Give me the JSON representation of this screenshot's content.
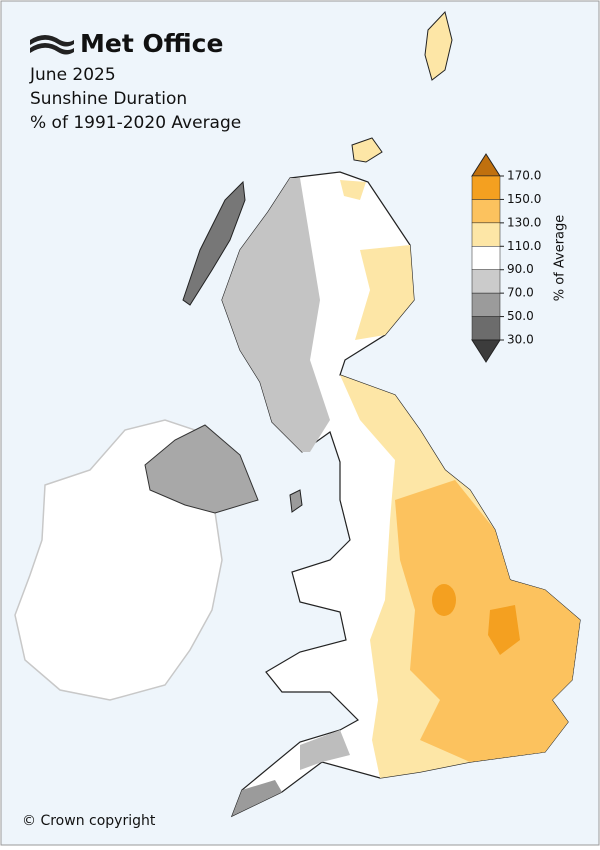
{
  "header": {
    "logo": "Met Office",
    "lines": [
      "June 2025",
      "Sunshine Duration",
      "% of 1991-2020 Average"
    ]
  },
  "colorbar": {
    "label": "% of Average",
    "ticks": [
      {
        "value": 170,
        "label": "170.0"
      },
      {
        "value": 150,
        "label": "150.0"
      },
      {
        "value": 130,
        "label": "130.0"
      },
      {
        "value": 110,
        "label": "110.0"
      },
      {
        "value": 90,
        "label": "90.0"
      },
      {
        "value": 70,
        "label": "70.0"
      },
      {
        "value": 50,
        "label": "50.0"
      },
      {
        "value": 30,
        "label": "30.0"
      }
    ],
    "colors": [
      "#c0700e",
      "#f4a020",
      "#fcc25e",
      "#fde6a6",
      "#ffffff",
      "#cbcbcb",
      "#9b9b9b",
      "#6c6c6c",
      "#3c3c3c"
    ]
  },
  "footer": {
    "copyright": "© Crown copyright"
  }
}
